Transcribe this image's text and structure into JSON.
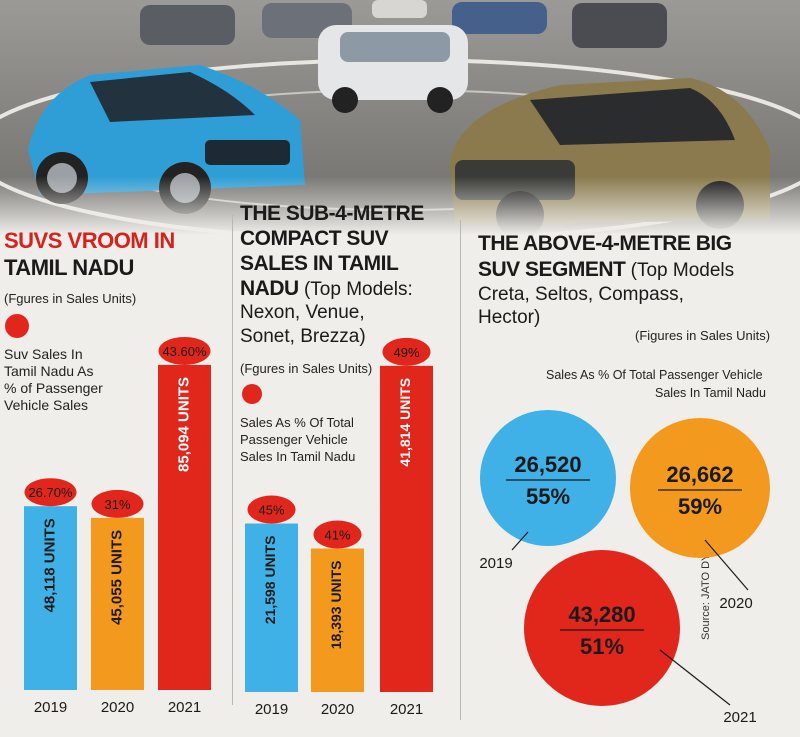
{
  "photo": {
    "description_icon": "suv-cars-photo"
  },
  "panel1": {
    "title_line1": "SUVS VROOM IN",
    "title_line2": "TAMIL NADU",
    "units_note": "(Fgures in Sales Units)",
    "legend_line1": "Suv Sales In",
    "legend_line2": "Tamil Nadu As",
    "legend_line3": "% of Passenger",
    "legend_line4": "Vehicle Sales"
  },
  "panel2": {
    "title_line1": "THE SUB-4-METRE",
    "title_line2": "COMPACT SUV",
    "title_line3": "SALES IN TAMIL",
    "title_line4_bold": "NADU",
    "title_line4_rest": " (Top Models:",
    "title_line5": "Nexon, Venue,",
    "title_line6": "Sonet, Brezza)",
    "units_note": "(Fgures in Sales Units)",
    "legend_line1": "Sales As % Of Total",
    "legend_line2": "Passenger Vehicle",
    "legend_line3": "Sales In Tamil Nadu"
  },
  "panel3": {
    "title_line1": "THE ABOVE-4-METRE BIG",
    "title_line2_bold": "SUV SEGMENT",
    "title_line2_rest": " (Top Models",
    "title_line3": "Creta, Seltos, Compass,",
    "title_line4": "Hector)",
    "units_note": "(Figures in Sales Units)",
    "legend_line1": "Sales As % Of Total Passenger Vehicle",
    "legend_line2": "Sales In Tamil Nadu"
  },
  "source": "Source: JATO DYNAMICS",
  "colors": {
    "blue": "#3fb1e6",
    "orange": "#f39a1e",
    "red": "#e1261c",
    "divider": "#b9b7b0"
  },
  "chart_data": [
    {
      "type": "bar",
      "title": "SUVS VROOM IN TAMIL NADU",
      "categories": [
        "2019",
        "2020",
        "2021"
      ],
      "values": [
        48118,
        45055,
        85094
      ],
      "value_labels": [
        "48,118 UNITS",
        "45,055 UNITS",
        "85,094 UNITS"
      ],
      "share_labels": [
        "26.70%",
        "31%",
        "43.60%"
      ],
      "ylim": [
        0,
        100000
      ]
    },
    {
      "type": "bar",
      "title": "THE SUB-4-METRE COMPACT SUV SALES IN TAMIL NADU",
      "categories": [
        "2019",
        "2020",
        "2021"
      ],
      "values": [
        21598,
        18393,
        41814
      ],
      "value_labels": [
        "21,598 UNITS",
        "18,393 UNITS",
        "41,814 UNITS"
      ],
      "share_labels": [
        "45%",
        "41%",
        "49%"
      ],
      "ylim": [
        0,
        50000
      ]
    },
    {
      "type": "bubble",
      "title": "THE ABOVE-4-METRE BIG SUV SEGMENT",
      "categories": [
        "2019",
        "2020",
        "2021"
      ],
      "values": [
        26520,
        26662,
        43280
      ],
      "value_labels": [
        "26,520",
        "26,662",
        "43,280"
      ],
      "share_labels": [
        "55%",
        "59%",
        "51%"
      ]
    }
  ]
}
